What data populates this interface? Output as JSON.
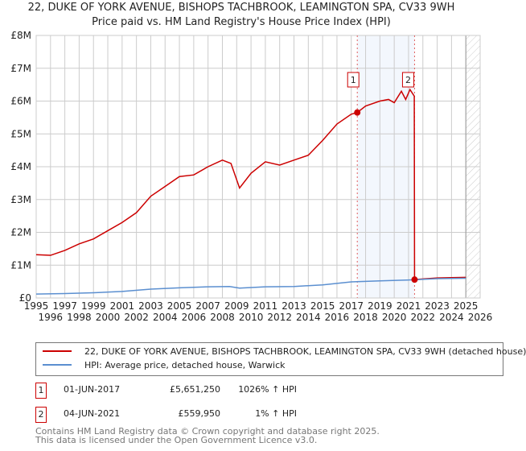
{
  "title_line1": "22, DUKE OF YORK AVENUE, BISHOPS TACHBROOK, LEAMINGTON SPA, CV33 9WH",
  "title_line2": "Price paid vs. HM Land Registry's House Price Index (HPI)",
  "chart_data": {
    "type": "line",
    "xlim": [
      1995,
      2026
    ],
    "ylim": [
      0,
      8000000
    ],
    "ytick_labels": [
      "£0",
      "£1M",
      "£2M",
      "£3M",
      "£4M",
      "£5M",
      "£6M",
      "£7M",
      "£8M"
    ],
    "ytick_values": [
      0,
      1000000,
      2000000,
      3000000,
      4000000,
      5000000,
      6000000,
      7000000,
      8000000
    ],
    "xtick_labels": [
      "1995",
      "1996",
      "1997",
      "1998",
      "1999",
      "2000",
      "2001",
      "2002",
      "2003",
      "2004",
      "2005",
      "2006",
      "2007",
      "2008",
      "2009",
      "2010",
      "2011",
      "2012",
      "2013",
      "2014",
      "2015",
      "2016",
      "2017",
      "2018",
      "2019",
      "2020",
      "2021",
      "2022",
      "2023",
      "2024",
      "2025",
      "2026"
    ],
    "grid": true,
    "series": [
      {
        "name": "22, DUKE OF YORK AVENUE, BISHOPS TACHBROOK, LEAMINGTON SPA, CV33 9WH (detached house)",
        "color": "#cc0000",
        "x": [
          1995,
          1996,
          1997,
          1998,
          1999,
          2000,
          2001,
          2002,
          2003,
          2004,
          2005,
          2006,
          2007,
          2008,
          2008.6,
          2009.2,
          2010,
          2011,
          2012,
          2013,
          2014,
          2015,
          2016,
          2017,
          2017.42,
          2018,
          2019,
          2019.6,
          2020,
          2020.5,
          2020.8,
          2021.1,
          2021.4,
          2021.42,
          2022,
          2023,
          2024,
          2025
        ],
        "y": [
          1320000,
          1300000,
          1450000,
          1650000,
          1800000,
          2050000,
          2300000,
          2600000,
          3100000,
          3400000,
          3700000,
          3750000,
          4000000,
          4200000,
          4100000,
          3350000,
          3800000,
          4150000,
          4050000,
          4200000,
          4350000,
          4800000,
          5300000,
          5600000,
          5651250,
          5850000,
          6000000,
          6050000,
          5950000,
          6300000,
          6050000,
          6350000,
          6150000,
          559950,
          580000,
          610000,
          620000,
          630000
        ]
      },
      {
        "name": "HPI: Average price, detached house, Warwick",
        "color": "#5b8fd0",
        "x": [
          1995,
          1997,
          1999,
          2001,
          2003,
          2005,
          2007,
          2008.5,
          2009.2,
          2011,
          2013,
          2015,
          2017,
          2019,
          2021.42,
          2023,
          2025
        ],
        "y": [
          120000,
          135000,
          160000,
          200000,
          270000,
          310000,
          340000,
          350000,
          300000,
          340000,
          350000,
          400000,
          490000,
          520000,
          555000,
          590000,
          600000
        ]
      }
    ],
    "annotations": [
      {
        "label": "1",
        "x": 2017.42,
        "y": 5651250
      },
      {
        "label": "2",
        "x": 2021.42,
        "y": 559950
      }
    ],
    "hatched_from": 2025
  },
  "legend": {
    "red": "22, DUKE OF YORK AVENUE, BISHOPS TACHBROOK, LEAMINGTON SPA, CV33 9WH (detached house)",
    "blue": "HPI: Average price, detached house, Warwick"
  },
  "transactions": [
    {
      "num": "1",
      "date": "01-JUN-2017",
      "price": "£5,651,250",
      "hpi": "1026% ↑ HPI"
    },
    {
      "num": "2",
      "date": "04-JUN-2021",
      "price": "£559,950",
      "hpi": "1% ↑ HPI"
    }
  ],
  "footer1": "Contains HM Land Registry data © Crown copyright and database right 2025.",
  "footer2": "This data is licensed under the Open Government Licence v3.0."
}
